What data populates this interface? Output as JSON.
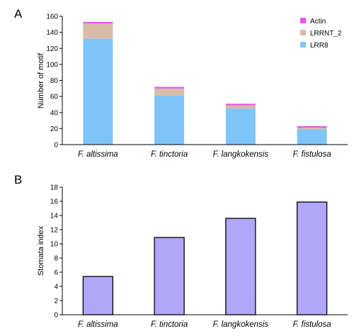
{
  "chart_data": [
    {
      "panel_label": "A",
      "type": "bar",
      "stacked": true,
      "categories": [
        "F. altissima",
        "F. tinctoria",
        "F. langkokensis",
        "F. fistulosa"
      ],
      "series": [
        {
          "name": "LRR8",
          "color": "#7ec4f8",
          "values": [
            132,
            61,
            45,
            19
          ]
        },
        {
          "name": "LRRNT_2",
          "color": "#d7bba8",
          "values": [
            19,
            9,
            4,
            2
          ]
        },
        {
          "name": "Actin",
          "color": "#ea55ea",
          "values": [
            2,
            2,
            2,
            2
          ]
        }
      ],
      "ylabel": "Number of motif",
      "ylim": [
        0,
        160
      ],
      "yticks": [
        0,
        20,
        40,
        60,
        80,
        100,
        120,
        140,
        160
      ],
      "grid": false,
      "legend": "top-right",
      "legend_order": [
        "Actin",
        "LRRNT_2",
        "LRR8"
      ]
    },
    {
      "panel_label": "B",
      "type": "bar",
      "categories": [
        "F. altissima",
        "F. tinctoria",
        "F. langkokensis",
        "F. fistulosa"
      ],
      "series": [
        {
          "color": "#b0a6fa",
          "values": [
            5.4,
            10.9,
            13.6,
            15.9
          ]
        }
      ],
      "ylabel": "Stomata index",
      "ylim": [
        0,
        18
      ],
      "yticks": [
        0,
        2,
        4,
        6,
        8,
        10,
        12,
        14,
        16,
        18
      ],
      "grid": false
    }
  ]
}
